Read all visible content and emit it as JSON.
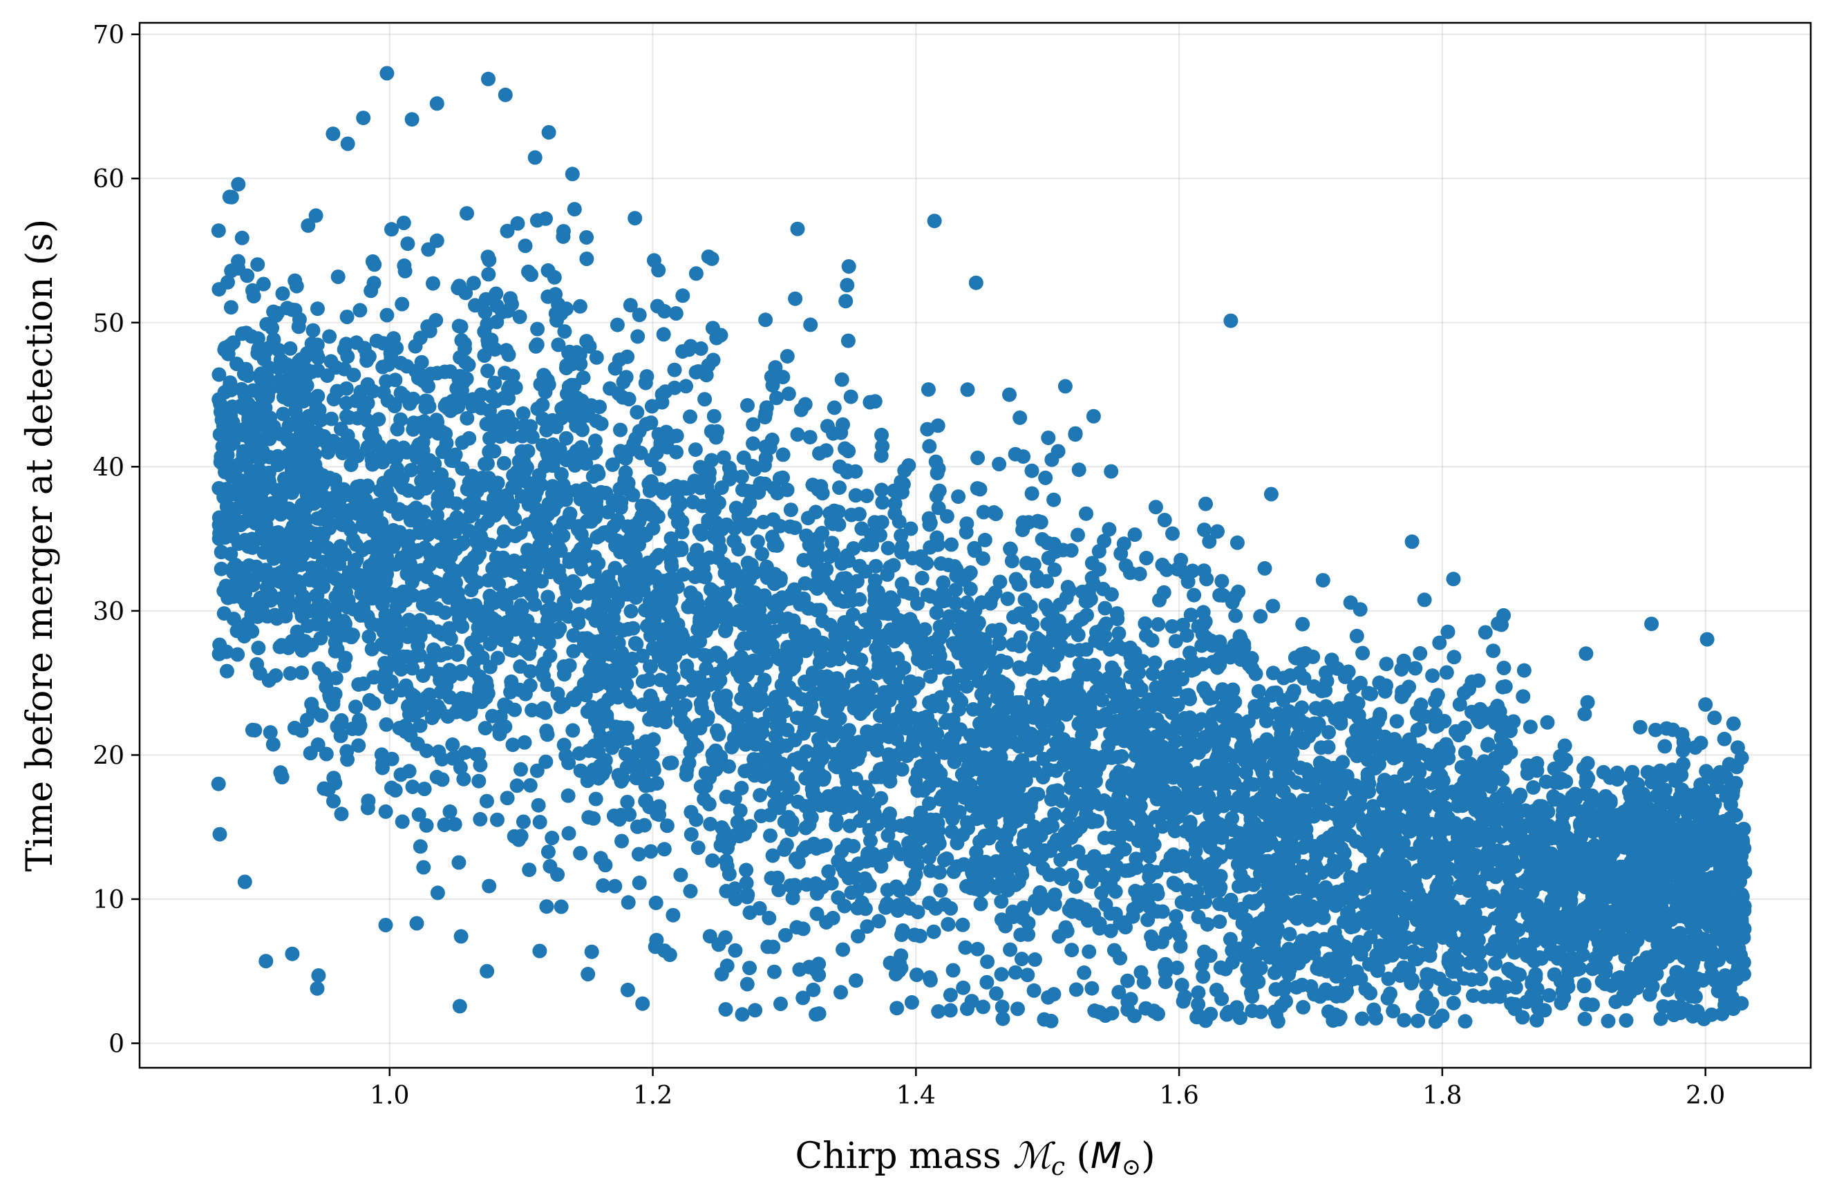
{
  "chart_data": {
    "type": "scatter",
    "title": "",
    "xlabel": "Chirp mass ",
    "xlabel_symbol": "ℳ",
    "xlabel_subscript": "c",
    "xlabel_unit_open": " (",
    "xlabel_unit": "M",
    "xlabel_unit_sub": "⊙",
    "xlabel_unit_close": ")",
    "ylabel": "Time before merger at detection (s)",
    "xlim": [
      0.81,
      2.08
    ],
    "ylim": [
      -1.7,
      70.8
    ],
    "xticks": [
      1.0,
      1.2,
      1.4,
      1.6,
      1.8,
      2.0
    ],
    "xtick_labels": [
      "1.0",
      "1.2",
      "1.4",
      "1.6",
      "1.8",
      "2.0"
    ],
    "yticks": [
      0,
      10,
      20,
      30,
      40,
      50,
      60,
      70
    ],
    "ytick_labels": [
      "0",
      "10",
      "20",
      "30",
      "40",
      "50",
      "60",
      "70"
    ],
    "grid": true,
    "marker_color": "#1f77b4",
    "n_points_approx": 7000,
    "density_notes": "Dense cloud; merger time decreases with chirp mass. Upper envelope ~60-67 s near Mc 1.0-1.1, ~45 s near 1.5, ~35 s near 1.75, ~25 s near 2.0. Lower envelope ~2 s from Mc 1.3 upward.",
    "bands": [
      {
        "x_range": [
          0.87,
          0.95
        ],
        "y_mean": 38,
        "y_spread": 9
      },
      {
        "x_range": [
          0.95,
          1.05
        ],
        "y_mean": 34,
        "y_spread": 12
      },
      {
        "x_range": [
          1.05,
          1.15
        ],
        "y_mean": 35,
        "y_spread": 13
      },
      {
        "x_range": [
          1.15,
          1.25
        ],
        "y_mean": 30,
        "y_spread": 13
      },
      {
        "x_range": [
          1.25,
          1.35
        ],
        "y_mean": 26,
        "y_spread": 13
      },
      {
        "x_range": [
          1.35,
          1.45
        ],
        "y_mean": 23,
        "y_spread": 12
      },
      {
        "x_range": [
          1.45,
          1.55
        ],
        "y_mean": 21,
        "y_spread": 11
      },
      {
        "x_range": [
          1.55,
          1.65
        ],
        "y_mean": 18,
        "y_spread": 10
      },
      {
        "x_range": [
          1.65,
          1.75
        ],
        "y_mean": 14,
        "y_spread": 9
      },
      {
        "x_range": [
          1.75,
          1.85
        ],
        "y_mean": 14,
        "y_spread": 8
      },
      {
        "x_range": [
          1.85,
          1.95
        ],
        "y_mean": 11,
        "y_spread": 6
      },
      {
        "x_range": [
          1.95,
          2.03
        ],
        "y_mean": 11,
        "y_spread": 6
      }
    ],
    "points": [
      {
        "x": 0.998,
        "y": 67.3
      },
      {
        "x": 1.075,
        "y": 66.9
      },
      {
        "x": 1.088,
        "y": 65.8
      },
      {
        "x": 1.036,
        "y": 65.2
      },
      {
        "x": 0.98,
        "y": 64.2
      },
      {
        "x": 1.017,
        "y": 64.1
      },
      {
        "x": 1.121,
        "y": 63.2
      },
      {
        "x": 0.957,
        "y": 63.1
      },
      {
        "x": 1.31,
        "y": 56.5
      },
      {
        "x": 1.349,
        "y": 53.9
      },
      {
        "x": 0.88,
        "y": 58.7
      },
      {
        "x": 0.885,
        "y": 59.6
      },
      {
        "x": 1.471,
        "y": 45.0
      },
      {
        "x": 1.535,
        "y": 43.5
      },
      {
        "x": 1.67,
        "y": 38.1
      },
      {
        "x": 1.589,
        "y": 36.3
      },
      {
        "x": 1.777,
        "y": 34.8
      },
      {
        "x": 1.959,
        "y": 29.1
      },
      {
        "x": 2.0,
        "y": 23.5
      },
      {
        "x": 2.011,
        "y": 18.8
      },
      {
        "x": 2.014,
        "y": 15.4
      },
      {
        "x": 2.024,
        "y": 6.9
      },
      {
        "x": 2.015,
        "y": 4.7
      },
      {
        "x": 0.87,
        "y": 18.0
      },
      {
        "x": 0.89,
        "y": 11.2
      },
      {
        "x": 0.906,
        "y": 5.7
      },
      {
        "x": 0.926,
        "y": 6.2
      },
      {
        "x": 0.945,
        "y": 3.8
      },
      {
        "x": 0.946,
        "y": 4.7
      },
      {
        "x": 0.997,
        "y": 8.2
      },
      {
        "x": 1.074,
        "y": 5.0
      },
      {
        "x": 1.181,
        "y": 3.7
      },
      {
        "x": 1.268,
        "y": 2.0
      },
      {
        "x": 1.324,
        "y": 2.0
      },
      {
        "x": 1.466,
        "y": 1.7
      },
      {
        "x": 1.566,
        "y": 1.9
      },
      {
        "x": 1.771,
        "y": 1.6
      },
      {
        "x": 1.795,
        "y": 1.5
      },
      {
        "x": 1.861,
        "y": 1.8
      },
      {
        "x": 1.966,
        "y": 1.7
      }
    ]
  }
}
